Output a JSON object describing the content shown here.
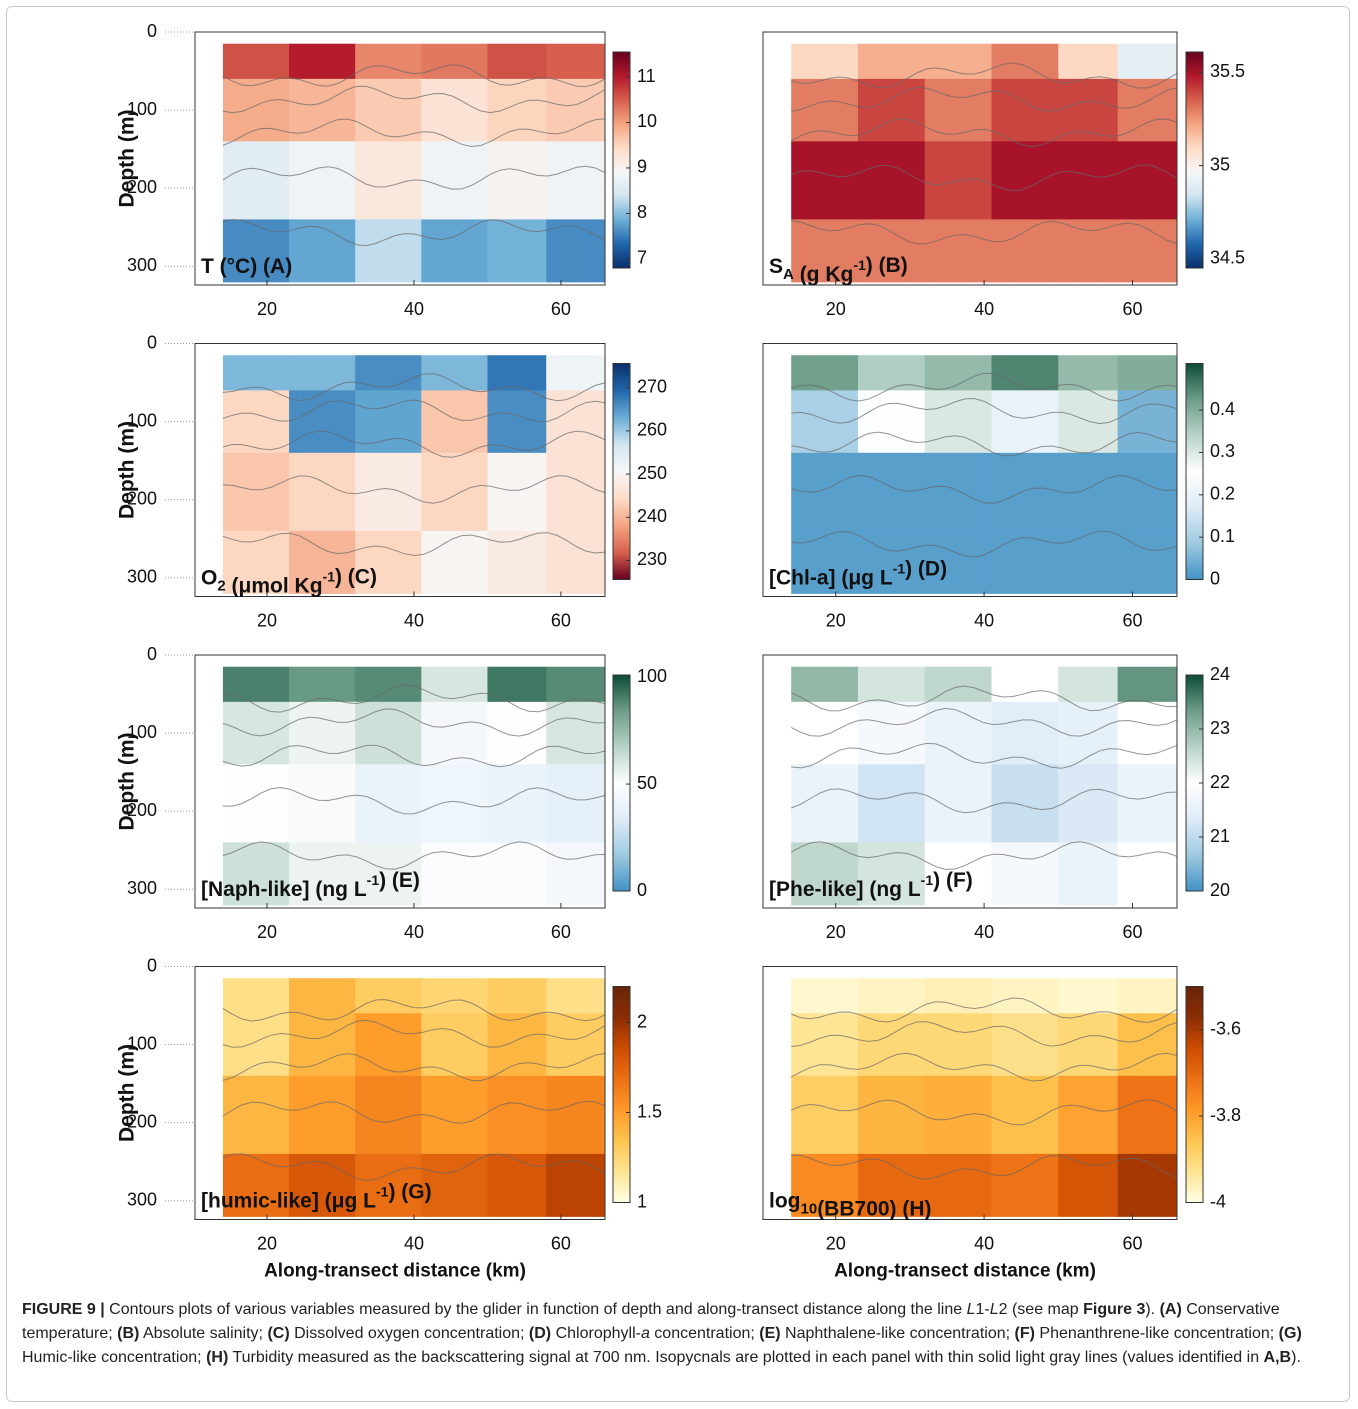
{
  "chart_data": [
    {
      "type": "heatmap",
      "label": [
        "T (°C)  (A)"
      ],
      "ylabel": "Depth (m)",
      "xlim": [
        10.2,
        66
      ],
      "xticks": [
        20,
        40,
        60
      ],
      "ylim": [
        0,
        324
      ],
      "yreverse": true,
      "yticks": [
        0,
        100,
        200,
        300
      ],
      "xedges": [
        14,
        23,
        32,
        41,
        50,
        58,
        66
      ],
      "yedges": [
        15,
        60,
        140,
        240,
        320
      ],
      "z": [
        [
          10.6,
          11,
          10.2,
          10.3,
          10.6,
          10.5
        ],
        [
          9.9,
          9.8,
          9.6,
          9.3,
          9.5,
          9.6
        ],
        [
          8.6,
          8.8,
          9.2,
          8.8,
          9,
          8.8
        ],
        [
          7.6,
          7.8,
          8.3,
          7.8,
          7.9,
          7.6
        ]
      ],
      "clim": [
        6.8,
        11.55
      ],
      "cticks": [
        7,
        8,
        9,
        10,
        11
      ],
      "colormap": [
        "#08306b",
        "#2166ac",
        "#6baed6",
        "#d1e5f0",
        "#f7f7f7",
        "#fddbc7",
        "#f4a582",
        "#d6604d",
        "#b2182b",
        "#67001f"
      ]
    },
    {
      "type": "heatmap",
      "label": [
        "S",
        {
          "sub": "A"
        },
        " (g Kg",
        {
          "sup": "-1"
        },
        ")  (B)"
      ],
      "xlim": [
        10.2,
        66
      ],
      "xticks": [
        20,
        40,
        60
      ],
      "ylim": [
        0,
        324
      ],
      "yreverse": true,
      "xedges": [
        14,
        23,
        32,
        41,
        50,
        58,
        66
      ],
      "yedges": [
        15,
        60,
        140,
        240,
        320
      ],
      "z": [
        [
          35.1,
          35.2,
          35.2,
          35.3,
          35.1,
          34.9
        ],
        [
          35.3,
          35.4,
          35.3,
          35.4,
          35.4,
          35.3
        ],
        [
          35.5,
          35.5,
          35.4,
          35.5,
          35.5,
          35.5
        ],
        [
          35.3,
          35.3,
          35.3,
          35.3,
          35.3,
          35.3
        ]
      ],
      "clim": [
        34.45,
        35.61
      ],
      "cticks": [
        34.5,
        35,
        35.5
      ],
      "colormap": [
        "#08306b",
        "#2166ac",
        "#6baed6",
        "#d1e5f0",
        "#f7f7f7",
        "#fddbc7",
        "#f4a582",
        "#d6604d",
        "#b2182b",
        "#67001f"
      ]
    },
    {
      "type": "heatmap",
      "label": [
        "O",
        {
          "sub": "2"
        },
        " (μmol Kg",
        {
          "sup": "-1"
        },
        ")  (C)"
      ],
      "ylabel": "Depth (m)",
      "xlim": [
        10.2,
        66
      ],
      "xticks": [
        20,
        40,
        60
      ],
      "ylim": [
        0,
        324
      ],
      "yreverse": true,
      "yticks": [
        0,
        100,
        200,
        300
      ],
      "xedges": [
        14,
        23,
        32,
        41,
        50,
        58,
        66
      ],
      "yedges": [
        15,
        60,
        140,
        240,
        320
      ],
      "z": [
        [
          262,
          262,
          266,
          262,
          268,
          252
        ],
        [
          244,
          266,
          264,
          242,
          266,
          246
        ],
        [
          242,
          244,
          248,
          244,
          250,
          246
        ],
        [
          244,
          240,
          244,
          250,
          248,
          246
        ]
      ],
      "clim": [
        225.6,
        275.6
      ],
      "cticks": [
        230,
        240,
        250,
        260,
        270
      ],
      "colormap": [
        "#67001f",
        "#d6604d",
        "#f4a582",
        "#fddbc7",
        "#f7f7f7",
        "#d1e5f0",
        "#6baed6",
        "#2166ac",
        "#08306b"
      ]
    },
    {
      "type": "heatmap",
      "label": [
        "[Chl-a] (μg L",
        {
          "sup": "-1"
        },
        ")  (D)"
      ],
      "xlim": [
        10.2,
        66
      ],
      "xticks": [
        20,
        40,
        60
      ],
      "ylim": [
        0,
        324
      ],
      "yreverse": true,
      "xedges": [
        14,
        23,
        32,
        41,
        50,
        58,
        66
      ],
      "yedges": [
        15,
        60,
        140,
        240,
        320
      ],
      "z": [
        [
          0.42,
          0.35,
          0.38,
          0.45,
          0.38,
          0.4
        ],
        [
          0.1,
          0.25,
          0.3,
          0.2,
          0.3,
          0.05
        ],
        [
          0.02,
          0.02,
          0.02,
          0.02,
          0.02,
          0.02
        ],
        [
          0.02,
          0.02,
          0.02,
          0.02,
          0.02,
          0.02
        ]
      ],
      "clim": [
        0,
        0.51
      ],
      "cticks": [
        0,
        0.1,
        0.2,
        0.3,
        0.4
      ],
      "colormap": [
        "#4292c6",
        "#9ecae1",
        "#deebf7",
        "#ffffff",
        "#b8d3c8",
        "#6d9d88",
        "#0b4d36"
      ]
    },
    {
      "type": "heatmap",
      "label": [
        "[Naph-like] (ng L",
        {
          "sup": "-1"
        },
        ")  (E)"
      ],
      "ylabel": "Depth (m)",
      "xlim": [
        10.2,
        66
      ],
      "xticks": [
        20,
        40,
        60
      ],
      "ylim": [
        0,
        324
      ],
      "yreverse": true,
      "yticks": [
        0,
        100,
        200,
        300
      ],
      "xedges": [
        14,
        23,
        32,
        41,
        50,
        58,
        66
      ],
      "yedges": [
        15,
        60,
        140,
        240,
        320
      ],
      "z": [
        [
          90,
          85,
          88,
          60,
          92,
          88
        ],
        [
          60,
          55,
          62,
          45,
          50,
          60
        ],
        [
          50,
          52,
          40,
          42,
          40,
          38
        ],
        [
          62,
          55,
          55,
          48,
          48,
          45
        ]
      ],
      "clim": [
        0,
        101
      ],
      "cticks": [
        0,
        50,
        100
      ],
      "colormap": [
        "#4292c6",
        "#9ecae1",
        "#deebf7",
        "#ffffff",
        "#b8d3c8",
        "#6d9d88",
        "#0b4d36"
      ]
    },
    {
      "type": "heatmap",
      "label": [
        "[Phe-like] (ng L",
        {
          "sup": "-1"
        },
        ")  (F)"
      ],
      "xlim": [
        10.2,
        66
      ],
      "xticks": [
        20,
        40,
        60
      ],
      "ylim": [
        0,
        324
      ],
      "yreverse": true,
      "xedges": [
        14,
        23,
        32,
        41,
        50,
        58,
        66
      ],
      "yedges": [
        15,
        60,
        140,
        240,
        320
      ],
      "z": [
        [
          23,
          22.4,
          22.6,
          22,
          22.4,
          23.4
        ],
        [
          22,
          21.8,
          21.6,
          21.4,
          21.5,
          22
        ],
        [
          21.6,
          21.2,
          21.6,
          21.1,
          21.3,
          21.6
        ],
        [
          22.6,
          22.4,
          22,
          21.8,
          21.6,
          22
        ]
      ],
      "clim": [
        20,
        24
      ],
      "cticks": [
        20,
        21,
        22,
        23,
        24
      ],
      "colormap": [
        "#4292c6",
        "#9ecae1",
        "#deebf7",
        "#ffffff",
        "#b8d3c8",
        "#6d9d88",
        "#0b4d36"
      ]
    },
    {
      "type": "heatmap",
      "label": [
        "[humic-like] (μg L",
        {
          "sup": "-1"
        },
        ")  (G)"
      ],
      "ylabel": "Depth (m)",
      "xlabel": "Along-transect distance (km)",
      "xlim": [
        10.2,
        66
      ],
      "xticks": [
        20,
        40,
        60
      ],
      "ylim": [
        0,
        324
      ],
      "yreverse": true,
      "yticks": [
        0,
        100,
        200,
        300
      ],
      "xedges": [
        14,
        23,
        32,
        41,
        50,
        58,
        66
      ],
      "yedges": [
        15,
        60,
        140,
        240,
        320
      ],
      "z": [
        [
          1.2,
          1.4,
          1.3,
          1.25,
          1.3,
          1.2
        ],
        [
          1.2,
          1.4,
          1.5,
          1.3,
          1.4,
          1.3
        ],
        [
          1.4,
          1.5,
          1.6,
          1.5,
          1.55,
          1.6
        ],
        [
          1.7,
          1.8,
          1.7,
          1.75,
          1.8,
          1.9
        ]
      ],
      "clim": [
        1,
        2.2
      ],
      "cticks": [
        1,
        1.5,
        2
      ],
      "colormap": [
        "#ffffe5",
        "#fee391",
        "#fec44f",
        "#fe9929",
        "#ec7014",
        "#cc4c02",
        "#8c2d04",
        "#662506"
      ]
    },
    {
      "type": "heatmap",
      "label": [
        "log",
        {
          "sub": "10"
        },
        "(BB700)  (H)"
      ],
      "xlabel": "Along-transect distance (km)",
      "xlim": [
        10.2,
        66
      ],
      "xticks": [
        20,
        40,
        60
      ],
      "ylim": [
        0,
        324
      ],
      "yreverse": true,
      "xedges": [
        14,
        23,
        32,
        41,
        50,
        58,
        66
      ],
      "yedges": [
        15,
        60,
        140,
        240,
        320
      ],
      "z": [
        [
          -3.98,
          -3.97,
          -3.96,
          -3.97,
          -3.98,
          -3.97
        ],
        [
          -3.93,
          -3.9,
          -3.9,
          -3.92,
          -3.9,
          -3.85
        ],
        [
          -3.88,
          -3.83,
          -3.82,
          -3.85,
          -3.8,
          -3.72
        ],
        [
          -3.76,
          -3.7,
          -3.7,
          -3.72,
          -3.66,
          -3.6
        ]
      ],
      "clim": [
        -4,
        -3.5
      ],
      "cticks": [
        -4,
        -3.8,
        -3.6
      ],
      "colormap": [
        "#ffffe5",
        "#fee391",
        "#fec44f",
        "#fe9929",
        "#ec7014",
        "#cc4c02",
        "#8c2d04",
        "#662506"
      ]
    }
  ],
  "caption": [
    {
      "b": "FIGURE 9 |"
    },
    " Contours plots of various variables measured by the glider in function of depth and along-transect distance along the line ",
    {
      "i": "L"
    },
    "1-",
    {
      "i": "L"
    },
    "2 (see map ",
    {
      "b": "Figure 3"
    },
    "). ",
    {
      "b": "(A)"
    },
    " Conservative temperature; ",
    {
      "b": "(B)"
    },
    " Absolute salinity; ",
    {
      "b": "(C)"
    },
    " Dissolved oxygen concentration; ",
    {
      "b": "(D)"
    },
    " Chlorophyll-",
    {
      "i": "a"
    },
    " concentration; ",
    {
      "b": "(E)"
    },
    " Naphthalene-like concentration; ",
    {
      "b": "(F)"
    },
    " Phenanthrene-like concentration; ",
    {
      "b": "(G)"
    },
    " Humic-like concentration; ",
    {
      "b": "(H)"
    },
    " Turbidity measured as the backscattering signal at 700 nm. Isopycnals are plotted in each panel with thin solid light gray lines (values identified in ",
    {
      "b": "A,B"
    },
    ")."
  ]
}
